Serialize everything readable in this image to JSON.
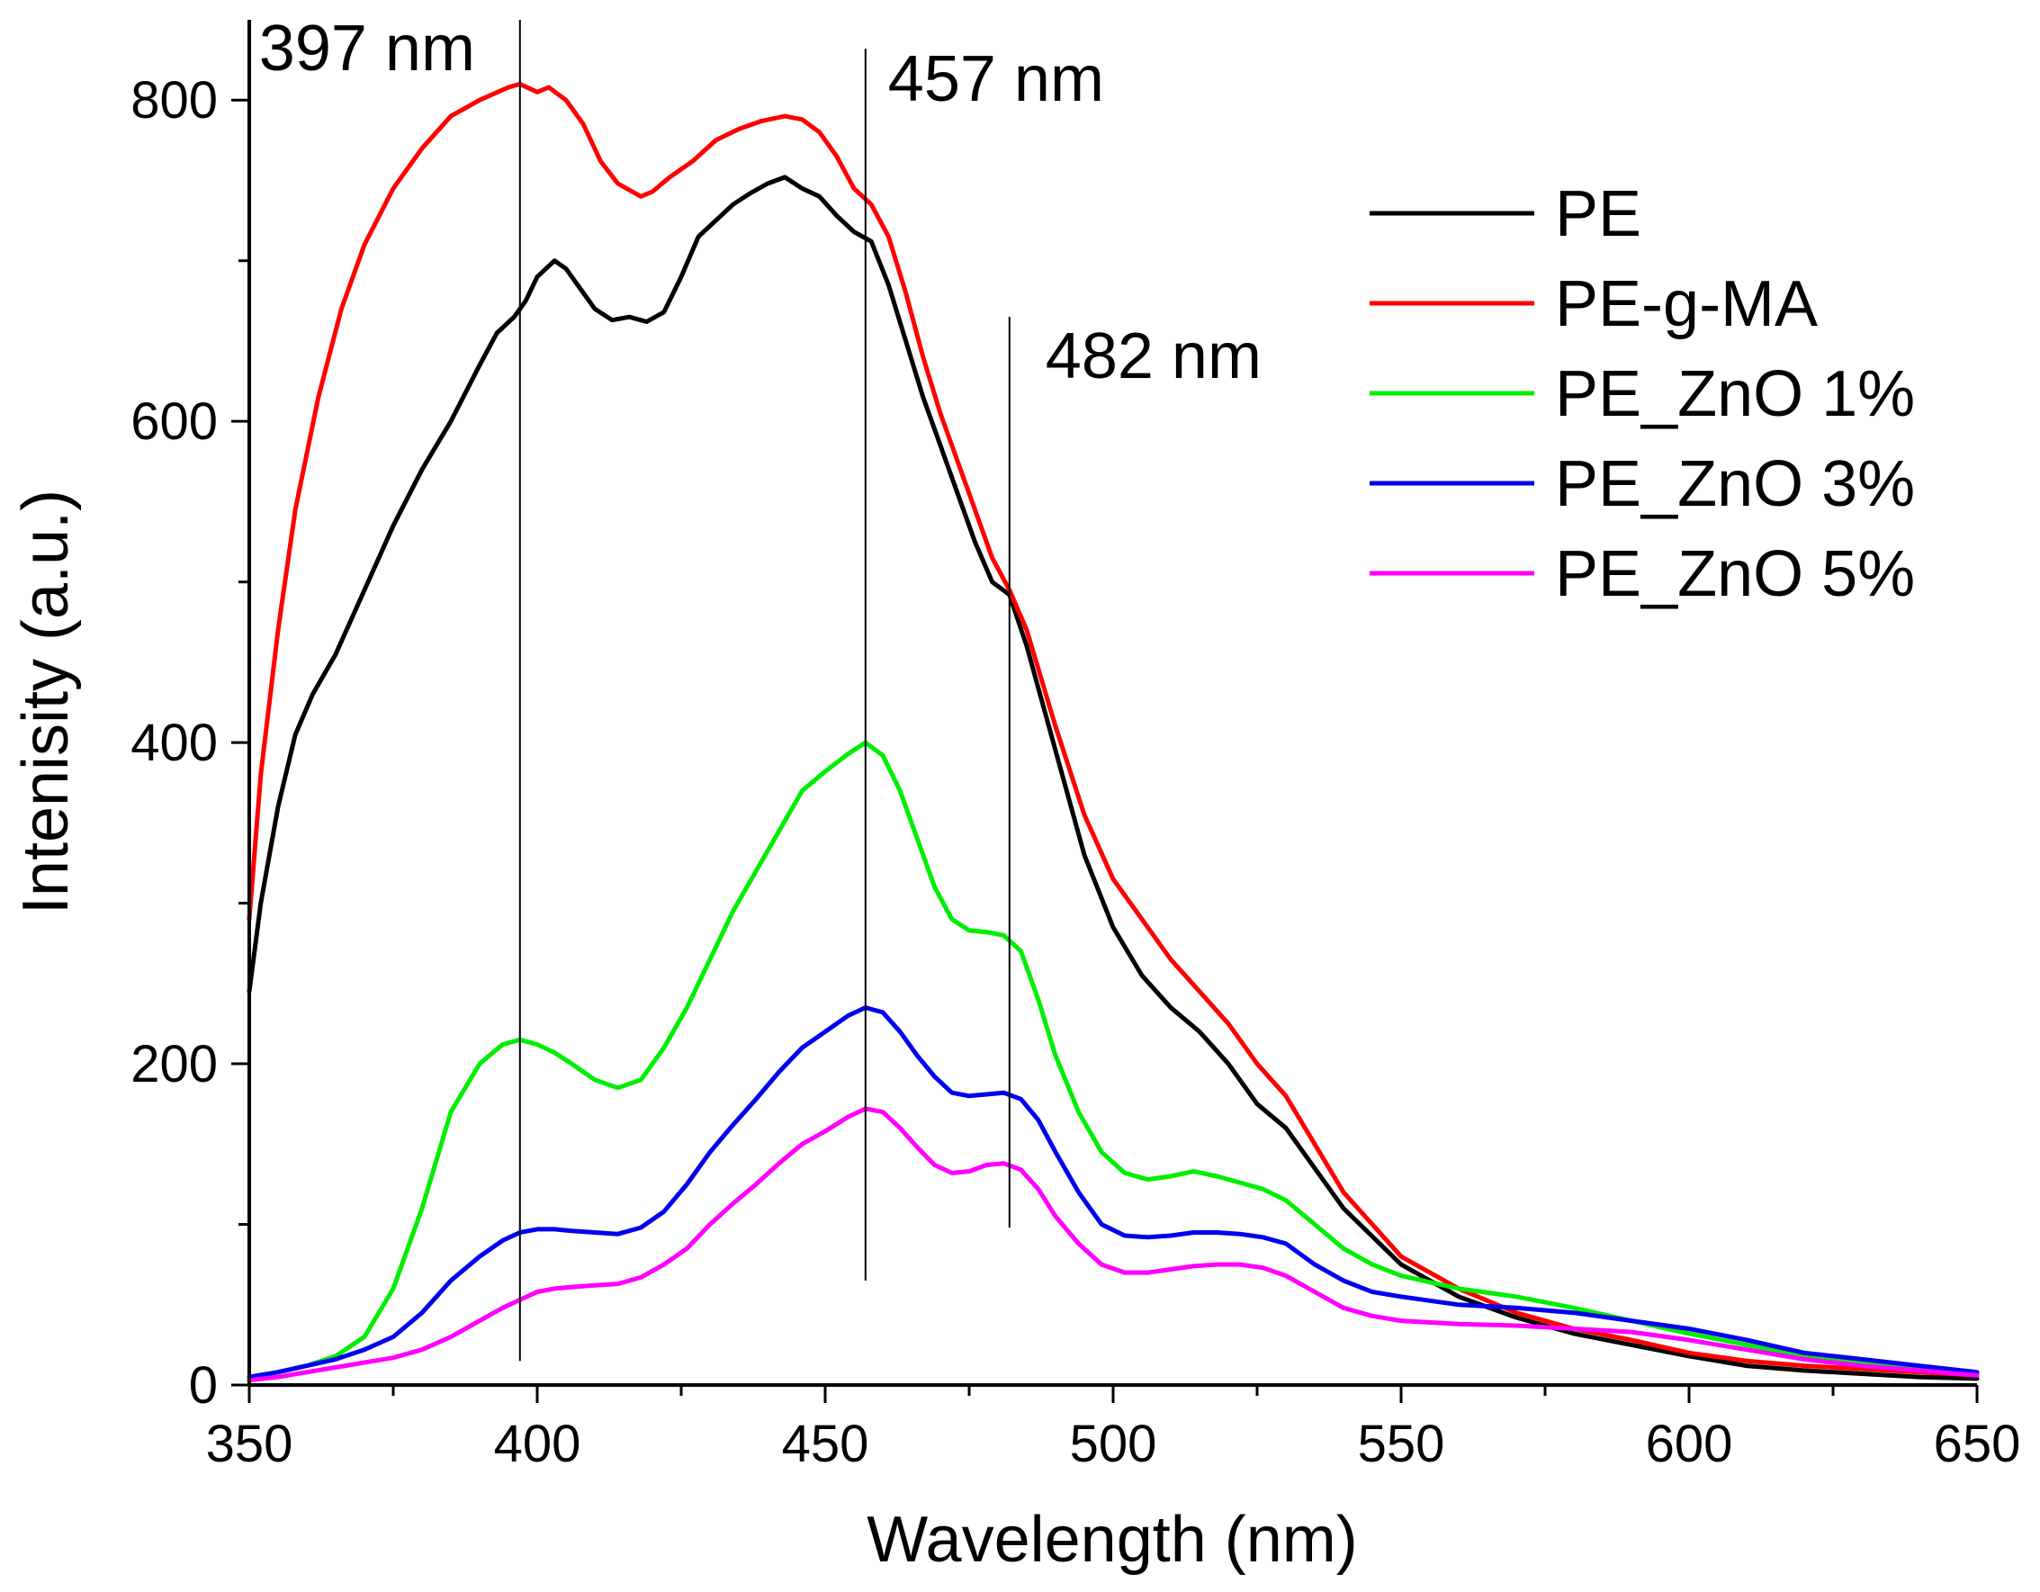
{
  "chart_data": {
    "type": "line",
    "title": "",
    "xlabel": "Wavelength (nm)",
    "ylabel": "Intenisity (a.u.)",
    "xlim": [
      350,
      650
    ],
    "ylim": [
      0,
      850
    ],
    "x_ticks": [
      350,
      400,
      450,
      500,
      550,
      600,
      650
    ],
    "y_ticks": [
      0,
      200,
      400,
      600,
      800
    ],
    "grid": false,
    "legend_position": "top-right",
    "annotations": [
      {
        "x": 397,
        "label": "397 nm",
        "y_from": 15,
        "y_top": 850
      },
      {
        "x": 457,
        "label": "457 nm",
        "y_from": 65,
        "y_top": 832
      },
      {
        "x": 482,
        "label": "482 nm",
        "y_from": 98,
        "y_top": 665
      }
    ],
    "series": [
      {
        "name": "PE",
        "color": "#000000",
        "x": [
          350,
          352,
          355,
          358,
          361,
          365,
          370,
          375,
          380,
          385,
          390,
          393,
          396,
          398,
          400,
          403,
          405,
          407,
          410,
          413,
          416,
          419,
          422,
          425,
          428,
          431,
          434,
          437,
          440,
          443,
          446,
          449,
          452,
          455,
          458,
          461,
          464,
          467,
          470,
          473,
          476,
          479,
          482,
          485,
          490,
          495,
          500,
          505,
          510,
          515,
          520,
          525,
          530,
          535,
          540,
          550,
          560,
          570,
          580,
          590,
          600,
          610,
          620,
          630,
          640,
          650
        ],
        "y": [
          245,
          300,
          360,
          405,
          430,
          455,
          495,
          535,
          570,
          600,
          635,
          655,
          665,
          675,
          690,
          700,
          695,
          685,
          670,
          663,
          665,
          662,
          668,
          690,
          715,
          725,
          735,
          742,
          748,
          752,
          745,
          740,
          728,
          718,
          712,
          685,
          650,
          615,
          585,
          555,
          525,
          500,
          492,
          460,
          395,
          330,
          285,
          255,
          235,
          220,
          200,
          175,
          160,
          135,
          110,
          75,
          55,
          42,
          32,
          25,
          18,
          12,
          9,
          7,
          5,
          4
        ]
      },
      {
        "name": "PE-g-MA",
        "color": "#ff0000",
        "x": [
          350,
          352,
          355,
          358,
          362,
          366,
          370,
          375,
          380,
          385,
          390,
          395,
          397,
          400,
          402,
          405,
          408,
          411,
          414,
          418,
          420,
          423,
          427,
          431,
          435,
          439,
          443,
          446,
          449,
          452,
          455,
          458,
          461,
          464,
          467,
          470,
          473,
          476,
          479,
          482,
          485,
          490,
          495,
          500,
          505,
          510,
          515,
          520,
          525,
          530,
          535,
          540,
          550,
          560,
          570,
          580,
          590,
          600,
          610,
          620,
          630,
          640,
          650
        ],
        "y": [
          290,
          380,
          470,
          545,
          615,
          670,
          710,
          745,
          770,
          790,
          800,
          808,
          810,
          805,
          808,
          800,
          785,
          762,
          748,
          740,
          743,
          752,
          762,
          775,
          782,
          787,
          790,
          788,
          780,
          765,
          745,
          735,
          715,
          680,
          640,
          605,
          575,
          545,
          515,
          495,
          470,
          410,
          355,
          315,
          290,
          265,
          245,
          225,
          200,
          180,
          150,
          120,
          80,
          60,
          45,
          35,
          28,
          20,
          15,
          12,
          10,
          8,
          6
        ]
      },
      {
        "name": "PE_ZnO 1%",
        "color": "#00ee00",
        "x": [
          350,
          355,
          360,
          365,
          370,
          375,
          380,
          385,
          390,
          394,
          397,
          400,
          403,
          406,
          410,
          414,
          418,
          422,
          426,
          430,
          434,
          438,
          442,
          446,
          450,
          454,
          457,
          460,
          463,
          466,
          469,
          472,
          475,
          478,
          481,
          484,
          487,
          490,
          494,
          498,
          502,
          506,
          510,
          514,
          518,
          522,
          526,
          530,
          535,
          540,
          545,
          550,
          560,
          570,
          580,
          590,
          600,
          610,
          620,
          630,
          640,
          650
        ],
        "y": [
          5,
          8,
          12,
          18,
          30,
          60,
          110,
          170,
          200,
          212,
          215,
          212,
          207,
          200,
          190,
          185,
          190,
          210,
          235,
          265,
          295,
          320,
          345,
          370,
          382,
          393,
          400,
          392,
          370,
          340,
          310,
          290,
          283,
          282,
          280,
          270,
          240,
          205,
          170,
          145,
          132,
          128,
          130,
          133,
          130,
          126,
          122,
          115,
          100,
          85,
          75,
          68,
          60,
          55,
          48,
          40,
          32,
          25,
          18,
          14,
          10,
          7
        ]
      },
      {
        "name": "PE_ZnO 3%",
        "color": "#0000ee",
        "x": [
          350,
          355,
          360,
          365,
          370,
          375,
          380,
          385,
          390,
          394,
          397,
          400,
          403,
          406,
          410,
          414,
          418,
          422,
          426,
          430,
          434,
          438,
          442,
          446,
          450,
          454,
          457,
          460,
          463,
          466,
          469,
          472,
          475,
          478,
          481,
          484,
          487,
          490,
          494,
          498,
          502,
          506,
          510,
          514,
          518,
          522,
          526,
          530,
          535,
          540,
          545,
          550,
          560,
          570,
          580,
          590,
          600,
          610,
          620,
          630,
          640,
          650
        ],
        "y": [
          5,
          8,
          12,
          16,
          22,
          30,
          45,
          65,
          80,
          90,
          95,
          97,
          97,
          96,
          95,
          94,
          98,
          108,
          125,
          145,
          162,
          178,
          195,
          210,
          220,
          230,
          235,
          232,
          220,
          205,
          192,
          182,
          180,
          181,
          182,
          178,
          165,
          145,
          120,
          100,
          93,
          92,
          93,
          95,
          95,
          94,
          92,
          88,
          75,
          65,
          58,
          55,
          50,
          48,
          45,
          40,
          35,
          28,
          20,
          16,
          12,
          8
        ]
      },
      {
        "name": "PE_ZnO 5%",
        "color": "#ff00ff",
        "x": [
          350,
          355,
          360,
          365,
          370,
          375,
          380,
          385,
          390,
          394,
          397,
          400,
          403,
          406,
          410,
          414,
          418,
          422,
          426,
          430,
          434,
          438,
          442,
          446,
          450,
          454,
          457,
          460,
          463,
          466,
          469,
          472,
          475,
          478,
          481,
          484,
          487,
          490,
          494,
          498,
          502,
          506,
          510,
          514,
          518,
          522,
          526,
          530,
          535,
          540,
          545,
          550,
          560,
          570,
          580,
          590,
          600,
          610,
          620,
          630,
          640,
          650
        ],
        "y": [
          3,
          5,
          8,
          11,
          14,
          17,
          22,
          30,
          40,
          48,
          53,
          58,
          60,
          61,
          62,
          63,
          67,
          75,
          85,
          100,
          113,
          125,
          138,
          150,
          158,
          167,
          172,
          170,
          160,
          148,
          137,
          132,
          133,
          137,
          138,
          134,
          122,
          105,
          88,
          75,
          70,
          70,
          72,
          74,
          75,
          75,
          73,
          68,
          58,
          48,
          43,
          40,
          38,
          37,
          35,
          33,
          28,
          22,
          16,
          12,
          9,
          6
        ]
      }
    ]
  }
}
